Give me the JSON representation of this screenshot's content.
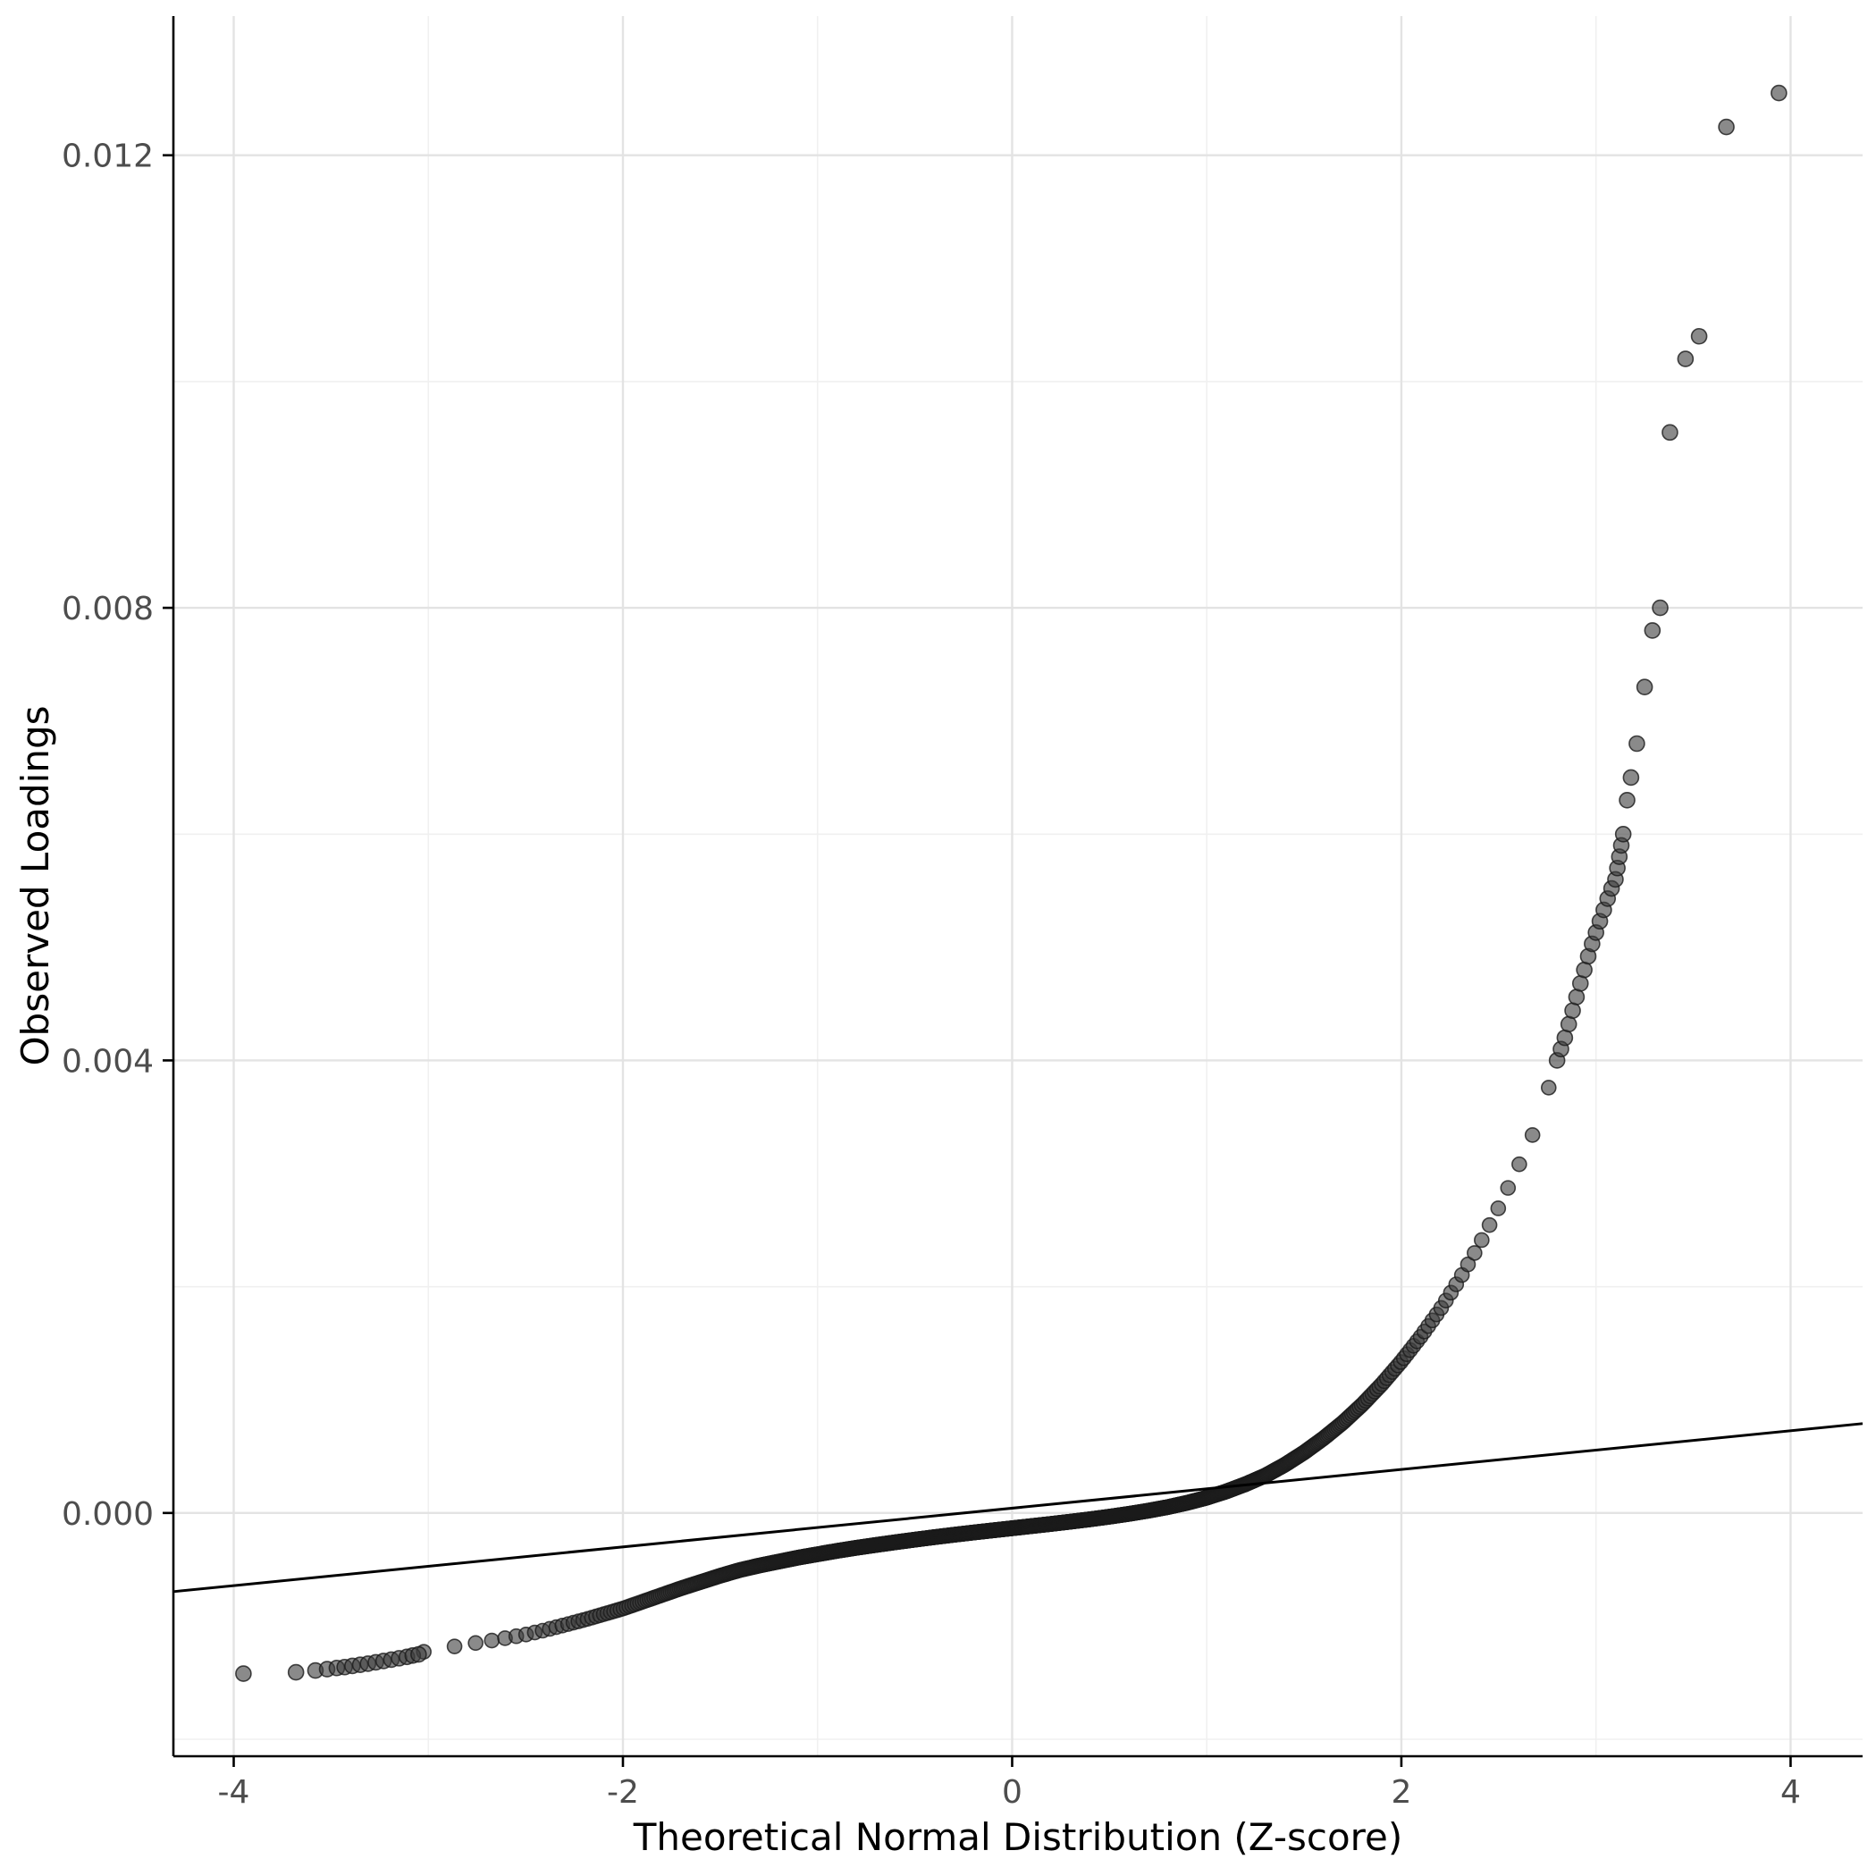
{
  "chart_data": {
    "type": "scatter",
    "subtype": "qq-plot",
    "title": "",
    "xlabel": "Theoretical Normal Distribution (Z-score)",
    "ylabel": "Observed Loadings",
    "xlim": [
      -4.31,
      4.37
    ],
    "ylim": [
      -0.00215,
      0.01323
    ],
    "x_ticks": [
      -4,
      -2,
      0,
      2,
      4
    ],
    "x_tick_labels": [
      "-4",
      "-2",
      "0",
      "2",
      "4"
    ],
    "y_ticks": [
      0,
      0.004,
      0.008,
      0.012
    ],
    "y_tick_labels": [
      "0.000",
      "0.004",
      "0.008",
      "0.012"
    ],
    "x_minor_ticks": [
      -3,
      -1,
      1,
      3
    ],
    "y_minor_ticks": [
      -0.002,
      0.002,
      0.006,
      0.01
    ],
    "grid": true,
    "legend": "none",
    "panel_background": "#ffffff",
    "major_grid_color": "#e3e3e3",
    "minor_grid_color": "#f0f0f0",
    "axis_line_color": "#000000",
    "point_color": "#3c3c3c",
    "point_edge_color": "#1a1a1a",
    "point_opacity": 0.6,
    "point_radius": 8,
    "n_band_points": 1200,
    "band_z_range": [
      -3.05,
      2.8
    ],
    "curve_anchors": [
      [
        -3.05,
        -0.001235
      ],
      [
        -2.9,
        -0.00119
      ],
      [
        -2.8,
        -0.00116
      ],
      [
        -2.7,
        -0.001135
      ],
      [
        -2.6,
        -0.001105
      ],
      [
        -2.5,
        -0.001075
      ],
      [
        -2.4,
        -0.001035
      ],
      [
        -2.3,
        -0.00099
      ],
      [
        -2.2,
        -0.000945
      ],
      [
        -2.1,
        -0.000895
      ],
      [
        -2.0,
        -0.000845
      ],
      [
        -1.9,
        -0.000785
      ],
      [
        -1.8,
        -0.000725
      ],
      [
        -1.7,
        -0.000665
      ],
      [
        -1.6,
        -0.00061
      ],
      [
        -1.5,
        -0.000555
      ],
      [
        -1.4,
        -0.000505
      ],
      [
        -1.3,
        -0.000465
      ],
      [
        -1.2,
        -0.00043
      ],
      [
        -1.1,
        -0.000395
      ],
      [
        -1.0,
        -0.000365
      ],
      [
        -0.9,
        -0.000335
      ],
      [
        -0.8,
        -0.000308
      ],
      [
        -0.7,
        -0.000283
      ],
      [
        -0.6,
        -0.000259
      ],
      [
        -0.5,
        -0.000236
      ],
      [
        -0.4,
        -0.000214
      ],
      [
        -0.3,
        -0.000193
      ],
      [
        -0.2,
        -0.000173
      ],
      [
        -0.1,
        -0.000154
      ],
      [
        0.0,
        -0.000135
      ],
      [
        0.1,
        -0.000116
      ],
      [
        0.2,
        -9.7e-05
      ],
      [
        0.3,
        -7.7e-05
      ],
      [
        0.4,
        -5.6e-05
      ],
      [
        0.5,
        -3.3e-05
      ],
      [
        0.6,
        -8e-06
      ],
      [
        0.7,
        2e-05
      ],
      [
        0.8,
        5.2e-05
      ],
      [
        0.9,
        9e-05
      ],
      [
        1.0,
        0.000135
      ],
      [
        1.1,
        0.00019
      ],
      [
        1.2,
        0.000255
      ],
      [
        1.3,
        0.00033
      ],
      [
        1.4,
        0.000425
      ],
      [
        1.5,
        0.000535
      ],
      [
        1.6,
        0.00066
      ],
      [
        1.7,
        0.0008
      ],
      [
        1.8,
        0.00096
      ],
      [
        1.9,
        0.00114
      ],
      [
        2.0,
        0.00134
      ],
      [
        2.1,
        0.00156
      ],
      [
        2.2,
        0.0018
      ],
      [
        2.3,
        0.00207
      ],
      [
        2.4,
        0.00237
      ],
      [
        2.5,
        0.0027
      ],
      [
        2.6,
        0.00306
      ],
      [
        2.7,
        0.00344
      ],
      [
        2.8,
        0.004
      ]
    ],
    "lower_tail_points": [
      [
        -3.95,
        -0.00142
      ],
      [
        -3.68,
        -0.001408
      ],
      [
        -3.58,
        -0.001392
      ],
      [
        -3.52,
        -0.00138
      ],
      [
        -3.47,
        -0.00137
      ],
      [
        -3.43,
        -0.001362
      ],
      [
        -3.39,
        -0.001352
      ],
      [
        -3.35,
        -0.001342
      ],
      [
        -3.31,
        -0.001332
      ],
      [
        -3.27,
        -0.00132
      ],
      [
        -3.23,
        -0.001308
      ],
      [
        -3.19,
        -0.001296
      ],
      [
        -3.15,
        -0.001284
      ],
      [
        -3.11,
        -0.001272
      ],
      [
        -3.08,
        -0.00126
      ],
      [
        -3.05,
        -0.00125
      ]
    ],
    "upper_tail_points": [
      [
        2.8,
        0.004
      ],
      [
        2.82,
        0.0041
      ],
      [
        2.84,
        0.0042
      ],
      [
        2.86,
        0.00432
      ],
      [
        2.88,
        0.00444
      ],
      [
        2.9,
        0.00456
      ],
      [
        2.92,
        0.00468
      ],
      [
        2.94,
        0.0048
      ],
      [
        2.96,
        0.00492
      ],
      [
        2.98,
        0.00503
      ],
      [
        3.0,
        0.00513
      ],
      [
        3.02,
        0.00523
      ],
      [
        3.04,
        0.00533
      ],
      [
        3.06,
        0.00543
      ],
      [
        3.08,
        0.00552
      ],
      [
        3.1,
        0.0056
      ],
      [
        3.11,
        0.0057
      ],
      [
        3.12,
        0.0058
      ],
      [
        3.13,
        0.0059
      ],
      [
        3.14,
        0.006
      ],
      [
        3.16,
        0.0063
      ],
      [
        3.18,
        0.0065
      ],
      [
        3.21,
        0.0068
      ],
      [
        3.25,
        0.0073
      ],
      [
        3.29,
        0.0078
      ],
      [
        3.33,
        0.008
      ],
      [
        3.38,
        0.00955
      ],
      [
        3.46,
        0.0102
      ],
      [
        3.53,
        0.0104
      ],
      [
        3.67,
        0.01225
      ],
      [
        3.94,
        0.01255
      ]
    ],
    "reference_line": {
      "x1": -4.31,
      "y1": -0.000695,
      "x2": 4.37,
      "y2": 0.00079,
      "color": "#000000",
      "width": 3
    }
  }
}
